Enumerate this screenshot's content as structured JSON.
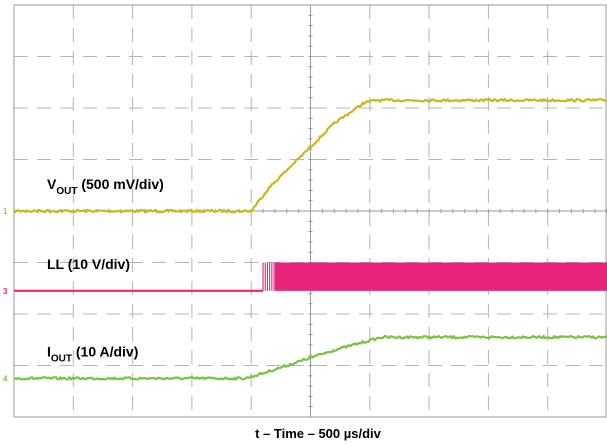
{
  "chart_data": {
    "type": "line",
    "title": "",
    "xlabel": "t – Time – 500 µs/div",
    "x_unit": "div",
    "x_scale": "500 µs/div",
    "xlim": [
      0,
      10
    ],
    "divisions": {
      "x": 10,
      "y": 8
    },
    "grid": true,
    "series": [
      {
        "label_main": "V",
        "label_sub": "OUT",
        "label_rest": " (500 mV/div)",
        "marker": "1",
        "color": "#c8b820",
        "x": [
          0,
          4.0,
          4.3,
          5.4,
          5.9,
          6.1,
          10
        ],
        "y": [
          4.0,
          4.0,
          4.45,
          5.7,
          6.1,
          6.15,
          6.15
        ]
      },
      {
        "label_main": "LL",
        "label_sub": "",
        "label_rest": " (10 V/div)",
        "marker": "3",
        "color": "#e8247a",
        "x": [
          0,
          4.2,
          4.2,
          10
        ],
        "y": [
          2.45,
          2.45,
          3.0,
          3.0
        ],
        "switching_start_div": 4.2,
        "solid_start_div": 4.4,
        "high_level_div": 3.0,
        "low_level_div": 2.45
      },
      {
        "label_main": "I",
        "label_sub": "OUT",
        "label_rest": " (10 A/div)",
        "marker": "4",
        "color": "#7cc142",
        "x": [
          0,
          3.9,
          4.2,
          5.4,
          6.2,
          10
        ],
        "y": [
          0.75,
          0.75,
          0.85,
          1.3,
          1.55,
          1.55
        ]
      }
    ]
  }
}
